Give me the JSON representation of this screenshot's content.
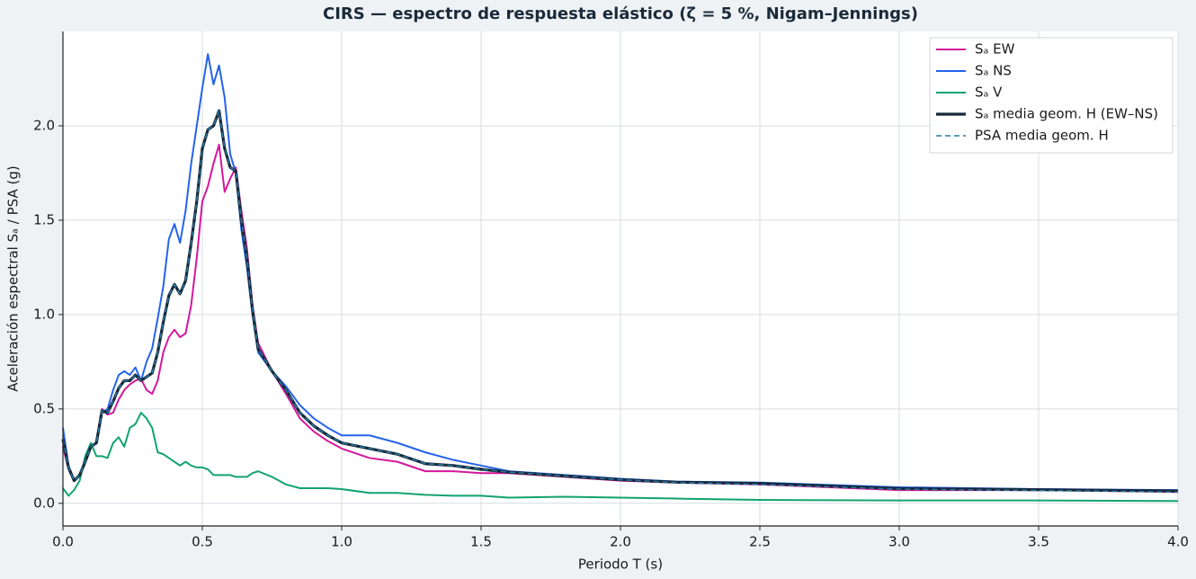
{
  "chart_data": {
    "type": "line",
    "title": "CIRS — espectro de respuesta elástico (ζ = 5 %, Nigam–Jennings)",
    "x_label": "Periodo T (s)",
    "y_label": "Aceleración espectral Sₐ / PSA (g)",
    "x": [
      0,
      0.02,
      0.04,
      0.06,
      0.08,
      0.1,
      0.12,
      0.14,
      0.16,
      0.18,
      0.2,
      0.22,
      0.24,
      0.26,
      0.28,
      0.3,
      0.32,
      0.34,
      0.36,
      0.38,
      0.4,
      0.42,
      0.44,
      0.46,
      0.48,
      0.5,
      0.52,
      0.54,
      0.56,
      0.58,
      0.6,
      0.62,
      0.64,
      0.66,
      0.68,
      0.7,
      0.75,
      0.8,
      0.85,
      0.9,
      0.95,
      1.0,
      1.1,
      1.2,
      1.3,
      1.4,
      1.5,
      1.6,
      1.8,
      2.0,
      2.2,
      2.5,
      3.0,
      3.5,
      4.0
    ],
    "series": [
      {
        "name": "Sₐ EW",
        "color": "#d4179c",
        "linewidth": 2,
        "linestyle": "solid",
        "values": [
          0.3,
          0.18,
          0.12,
          0.15,
          0.22,
          0.3,
          0.32,
          0.5,
          0.47,
          0.48,
          0.55,
          0.6,
          0.63,
          0.65,
          0.66,
          0.6,
          0.58,
          0.65,
          0.8,
          0.88,
          0.92,
          0.88,
          0.9,
          1.05,
          1.3,
          1.6,
          1.68,
          1.8,
          1.9,
          1.65,
          1.72,
          1.78,
          1.55,
          1.35,
          1.05,
          0.85,
          0.7,
          0.58,
          0.45,
          0.38,
          0.33,
          0.29,
          0.24,
          0.22,
          0.17,
          0.17,
          0.16,
          0.16,
          0.14,
          0.12,
          0.11,
          0.1,
          0.07,
          0.07,
          0.06
        ]
      },
      {
        "name": "Sₐ NS",
        "color": "#2563eb",
        "linewidth": 2,
        "linestyle": "solid",
        "values": [
          0.4,
          0.2,
          0.12,
          0.15,
          0.22,
          0.3,
          0.32,
          0.48,
          0.5,
          0.6,
          0.68,
          0.7,
          0.68,
          0.72,
          0.65,
          0.75,
          0.82,
          0.98,
          1.15,
          1.4,
          1.48,
          1.38,
          1.55,
          1.8,
          2.0,
          2.2,
          2.38,
          2.22,
          2.32,
          2.15,
          1.85,
          1.75,
          1.45,
          1.25,
          1.0,
          0.8,
          0.7,
          0.62,
          0.52,
          0.45,
          0.4,
          0.36,
          0.36,
          0.32,
          0.27,
          0.23,
          0.2,
          0.17,
          0.15,
          0.13,
          0.115,
          0.11,
          0.085,
          0.075,
          0.07
        ]
      },
      {
        "name": "Sₐ V",
        "color": "#12a36e",
        "linewidth": 2,
        "linestyle": "solid",
        "values": [
          0.08,
          0.04,
          0.07,
          0.12,
          0.25,
          0.32,
          0.25,
          0.25,
          0.24,
          0.32,
          0.35,
          0.3,
          0.4,
          0.42,
          0.48,
          0.45,
          0.4,
          0.27,
          0.26,
          0.24,
          0.22,
          0.2,
          0.22,
          0.2,
          0.19,
          0.19,
          0.18,
          0.15,
          0.15,
          0.15,
          0.15,
          0.14,
          0.14,
          0.14,
          0.16,
          0.17,
          0.14,
          0.1,
          0.08,
          0.08,
          0.08,
          0.075,
          0.055,
          0.055,
          0.045,
          0.04,
          0.04,
          0.03,
          0.035,
          0.03,
          0.025,
          0.018,
          0.015,
          0.015,
          0.012
        ]
      },
      {
        "name": "Sₐ media geom. H (EW–NS)",
        "color": "#16283a",
        "linewidth": 3.2,
        "linestyle": "solid",
        "values": [
          0.34,
          0.19,
          0.12,
          0.15,
          0.22,
          0.3,
          0.32,
          0.49,
          0.48,
          0.54,
          0.61,
          0.65,
          0.65,
          0.68,
          0.65,
          0.67,
          0.69,
          0.8,
          0.96,
          1.1,
          1.16,
          1.11,
          1.18,
          1.38,
          1.6,
          1.88,
          1.98,
          2.0,
          2.08,
          1.88,
          1.78,
          1.76,
          1.5,
          1.3,
          1.02,
          0.82,
          0.7,
          0.6,
          0.48,
          0.41,
          0.36,
          0.32,
          0.29,
          0.26,
          0.21,
          0.2,
          0.18,
          0.165,
          0.145,
          0.125,
          0.112,
          0.105,
          0.078,
          0.072,
          0.065
        ]
      },
      {
        "name": "PSA media geom. H",
        "color": "#2a7aa0",
        "linewidth": 1.5,
        "linestyle": "dashed",
        "values": [
          0.34,
          0.19,
          0.12,
          0.15,
          0.22,
          0.3,
          0.32,
          0.49,
          0.48,
          0.54,
          0.61,
          0.65,
          0.65,
          0.68,
          0.65,
          0.67,
          0.69,
          0.8,
          0.96,
          1.1,
          1.16,
          1.11,
          1.18,
          1.38,
          1.6,
          1.88,
          1.98,
          2.0,
          2.08,
          1.88,
          1.78,
          1.76,
          1.5,
          1.3,
          1.02,
          0.82,
          0.7,
          0.6,
          0.48,
          0.41,
          0.36,
          0.32,
          0.29,
          0.26,
          0.21,
          0.2,
          0.18,
          0.165,
          0.145,
          0.125,
          0.11,
          0.1,
          0.075,
          0.068,
          0.06
        ]
      }
    ],
    "xlim": [
      0,
      4.0
    ],
    "ylim": [
      -0.12,
      2.5
    ],
    "xticks": [
      {
        "value": 0,
        "label": "0.0"
      },
      0.5,
      {
        "value": 1,
        "label": "1.0"
      },
      1.5,
      {
        "value": 2,
        "label": "2.0"
      },
      2.5,
      {
        "value": 3,
        "label": "3.0"
      },
      3.5,
      {
        "value": 4,
        "label": "4.0"
      }
    ],
    "yticks": [
      {
        "value": 0,
        "label": "0.0"
      },
      0.5,
      {
        "value": 1,
        "label": "1.0"
      },
      1.5,
      {
        "value": 2,
        "label": "2.0"
      }
    ],
    "grid": true,
    "legend": "upper right"
  }
}
